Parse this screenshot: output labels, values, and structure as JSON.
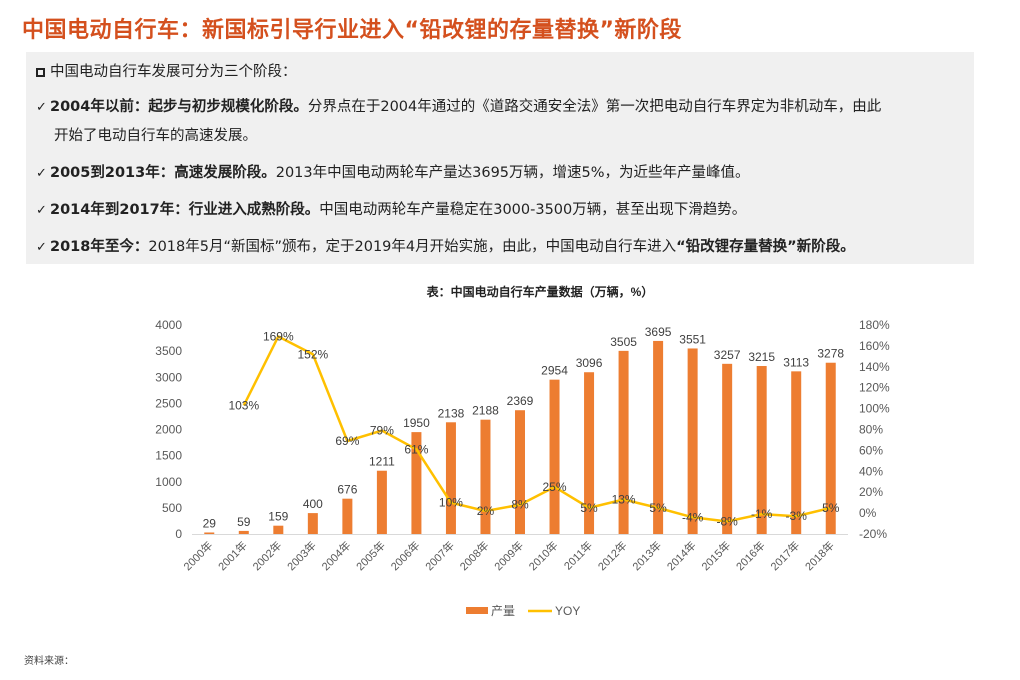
{
  "title": "中国电动自行车：新国标引导行业进入“铅改锂的存量替换”新阶段",
  "intro": "中国电动自行车发展可分为三个阶段：",
  "stages": [
    {
      "bold": "2004年以前：起步与初步规模化阶段。",
      "text1": "分界点在于2004年通过的《道路交通安全法》第一次把电动自行车界定为非机动车，由此",
      "text2": "开始了电动自行车的高速发展。"
    },
    {
      "bold": "2005到2013年：高速发展阶段。",
      "text1": "2013年中国电动两轮车产量达3695万辆，增速5%，为近些年产量峰值。"
    },
    {
      "bold": "2014年到2017年：行业进入成熟阶段。",
      "text1": "中国电动两轮车产量稳定在3000-3500万辆，甚至出现下滑趋势。"
    },
    {
      "bold": "2018年至今：",
      "text1": "2018年5月“新国标”颁布，定于2019年4月开始实施，由此，中国电动自行车进入",
      "bold2": "“铅改锂存量替换”新阶段。"
    }
  ],
  "source": "资料来源：",
  "colors": {
    "title": "#D4501E",
    "bar": "#ED7D31",
    "line": "#FFC000"
  },
  "chart_data": {
    "type": "bar",
    "title": "表：中国电动自行车产量数据（万辆，%）",
    "categories": [
      "2000年",
      "2001年",
      "2002年",
      "2003年",
      "2004年",
      "2005年",
      "2006年",
      "2007年",
      "2008年",
      "2009年",
      "2010年",
      "2011年",
      "2012年",
      "2013年",
      "2014年",
      "2015年",
      "2016年",
      "2017年",
      "2018年"
    ],
    "series": [
      {
        "name": "产量",
        "type": "bar",
        "axis": "left",
        "values": [
          29,
          59,
          159,
          400,
          676,
          1211,
          1950,
          2138,
          2188,
          2369,
          2954,
          3096,
          3505,
          3695,
          3551,
          3257,
          3215,
          3113,
          3278
        ],
        "labels": [
          "29",
          "59",
          "159",
          "400",
          "676",
          "1211",
          "1950",
          "2138",
          "2188",
          "2369",
          "2954",
          "3096",
          "3505",
          "3695",
          "3551",
          "3257",
          "3215",
          "3113",
          "3278"
        ]
      },
      {
        "name": "YOY",
        "type": "line",
        "axis": "right",
        "values": [
          null,
          103,
          169,
          152,
          69,
          79,
          61,
          10,
          2,
          8,
          25,
          5,
          13,
          5,
          -4,
          -8,
          -1,
          -3,
          5
        ],
        "labels": [
          "",
          "103%",
          "169%",
          "152%",
          "69%",
          "79%",
          "61%",
          "10%",
          "2%",
          "8%",
          "25%",
          "5%",
          "13%",
          "5%",
          "-4%",
          "-8%",
          "-1%",
          "-3%",
          "5%"
        ]
      }
    ],
    "yleft": {
      "min": 0,
      "max": 4000,
      "step": 500,
      "ticks": [
        "0",
        "500",
        "1000",
        "1500",
        "2000",
        "2500",
        "3000",
        "3500",
        "4000"
      ]
    },
    "yright": {
      "min": -20,
      "max": 180,
      "step": 20,
      "ticks": [
        "-20%",
        "0%",
        "20%",
        "40%",
        "60%",
        "80%",
        "100%",
        "120%",
        "140%",
        "160%",
        "180%"
      ]
    },
    "legend_position": "bottom",
    "grid": false
  }
}
